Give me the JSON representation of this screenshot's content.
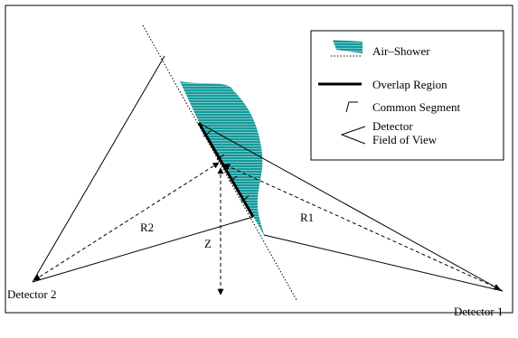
{
  "legend": {
    "air_shower": "Air–Shower",
    "overlap_region": "Overlap Region",
    "common_segment": "Common Segment",
    "detector_fov_line1": "Detector",
    "detector_fov_line2": "Field of View"
  },
  "labels": {
    "r1": "R1",
    "r2": "R2",
    "z": "Z",
    "detector1": "Detector 1",
    "detector2": "Detector 2"
  },
  "colors": {
    "shower": "#159a9a",
    "line": "#000000"
  }
}
